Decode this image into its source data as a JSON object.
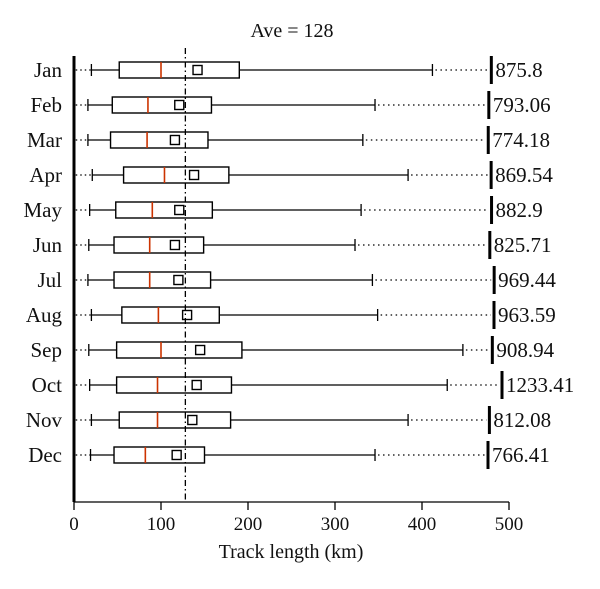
{
  "chart_data": {
    "type": "boxplot",
    "title": "Ave = 128",
    "xlabel": "Track length (km)",
    "ylabel": "",
    "xlim": [
      0,
      500
    ],
    "xticks": [
      0,
      100,
      200,
      300,
      400,
      500
    ],
    "average_line": 128,
    "colors": {
      "median": "#cc3300",
      "box": "#000000",
      "axis": "#000000"
    },
    "categories": [
      "Jan",
      "Feb",
      "Mar",
      "Apr",
      "May",
      "Jun",
      "Jul",
      "Aug",
      "Sep",
      "Oct",
      "Nov",
      "Dec"
    ],
    "series": [
      {
        "month": "Jan",
        "min": 2,
        "whisker_low": 20,
        "q1": 52,
        "median": 100,
        "mean": 142,
        "q3": 190,
        "whisker_high": 412,
        "max": 875.8,
        "max_label": "875.8"
      },
      {
        "month": "Feb",
        "min": 2,
        "whisker_low": 16,
        "q1": 44,
        "median": 85,
        "mean": 121,
        "q3": 158,
        "whisker_high": 346,
        "max": 793.06,
        "max_label": "793.06"
      },
      {
        "month": "Mar",
        "min": 2,
        "whisker_low": 16,
        "q1": 42,
        "median": 84,
        "mean": 116,
        "q3": 154,
        "whisker_high": 332,
        "max": 774.18,
        "max_label": "774.18"
      },
      {
        "month": "Apr",
        "min": 2,
        "whisker_low": 21,
        "q1": 57,
        "median": 104,
        "mean": 138,
        "q3": 178,
        "whisker_high": 384,
        "max": 869.54,
        "max_label": "869.54"
      },
      {
        "month": "May",
        "min": 2,
        "whisker_low": 18,
        "q1": 48,
        "median": 90,
        "mean": 121,
        "q3": 159,
        "whisker_high": 330,
        "max": 882.9,
        "max_label": "882.9"
      },
      {
        "month": "Jun",
        "min": 2,
        "whisker_low": 17,
        "q1": 46,
        "median": 87,
        "mean": 116,
        "q3": 149,
        "whisker_high": 323,
        "max": 825.71,
        "max_label": "825.71"
      },
      {
        "month": "Jul",
        "min": 2,
        "whisker_low": 16,
        "q1": 46,
        "median": 87,
        "mean": 120,
        "q3": 157,
        "whisker_high": 343,
        "max": 969.44,
        "max_label": "969.44"
      },
      {
        "month": "Aug",
        "min": 2,
        "whisker_low": 20,
        "q1": 55,
        "median": 97,
        "mean": 130,
        "q3": 167,
        "whisker_high": 349,
        "max": 963.59,
        "max_label": "963.59"
      },
      {
        "month": "Sep",
        "min": 2,
        "whisker_low": 17,
        "q1": 49,
        "median": 100,
        "mean": 145,
        "q3": 193,
        "whisker_high": 447,
        "max": 908.94,
        "max_label": "908.94"
      },
      {
        "month": "Oct",
        "min": 2,
        "whisker_low": 18,
        "q1": 49,
        "median": 96,
        "mean": 141,
        "q3": 181,
        "whisker_high": 429,
        "max": 1233.41,
        "max_label": "1233.41"
      },
      {
        "month": "Nov",
        "min": 2,
        "whisker_low": 20,
        "q1": 52,
        "median": 96,
        "mean": 136,
        "q3": 180,
        "whisker_high": 384,
        "max": 812.08,
        "max_label": "812.08"
      },
      {
        "month": "Dec",
        "min": 2,
        "whisker_low": 19,
        "q1": 46,
        "median": 82,
        "mean": 118,
        "q3": 150,
        "whisker_high": 346,
        "max": 766.41,
        "max_label": "766.41"
      }
    ]
  }
}
